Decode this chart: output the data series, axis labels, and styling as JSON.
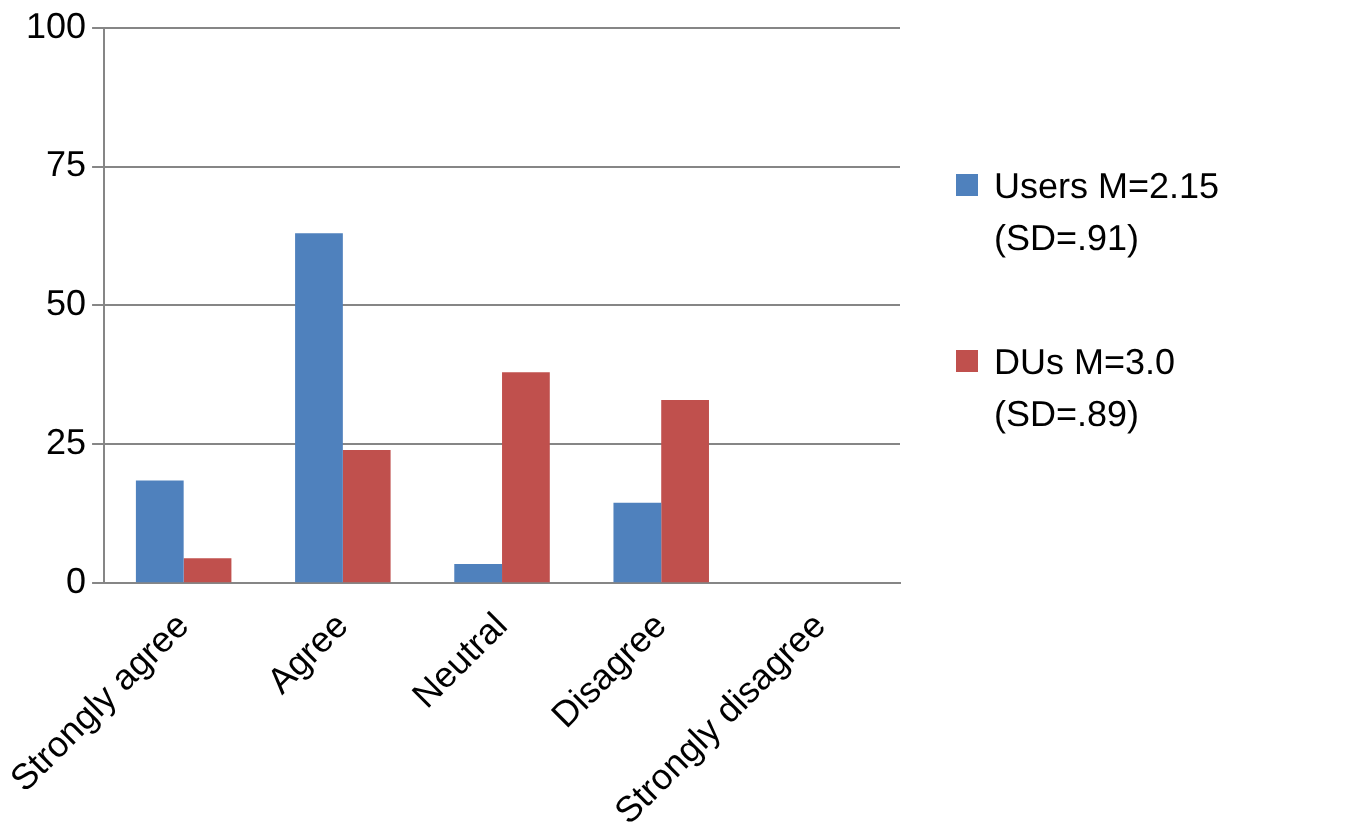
{
  "chart_data": {
    "type": "bar",
    "categories": [
      "Strongly agree",
      "Agree",
      "Neutral",
      "Disagree",
      "Strongly disagree"
    ],
    "series": [
      {
        "name": "Users M=2.15 (SD=.91)",
        "color": "#4f81bd",
        "values": [
          18.5,
          63,
          3.5,
          14.5,
          0
        ]
      },
      {
        "name": "DUs M=3.0 (SD=.89)",
        "color": "#c0504d",
        "values": [
          4.5,
          24,
          38,
          33,
          0
        ]
      }
    ],
    "ylim": [
      0,
      100
    ],
    "yticks": [
      0,
      25,
      50,
      75,
      100
    ],
    "grid": "y",
    "legend": "right"
  }
}
